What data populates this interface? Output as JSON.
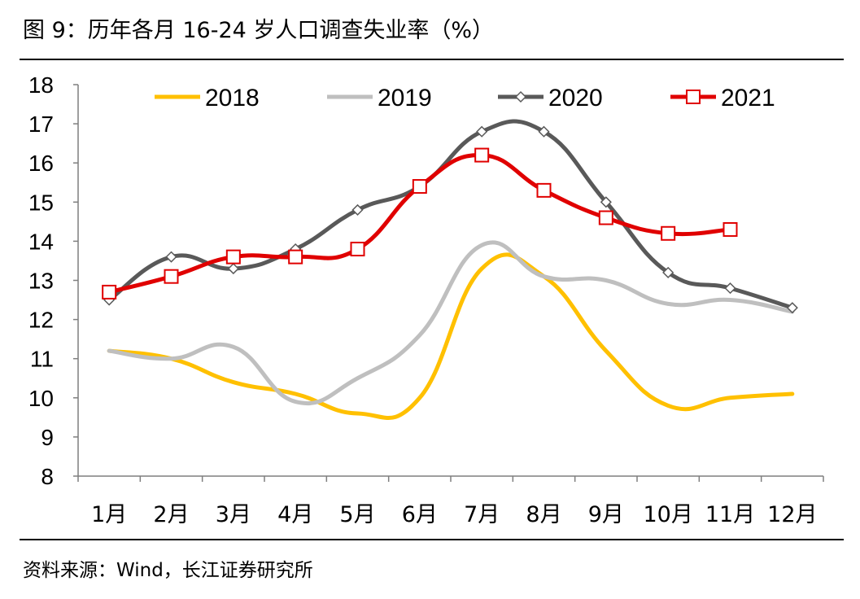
{
  "figure_title": "图 9：历年各月 16-24 岁人口调查失业率（%）",
  "source": "资料来源：Wind，长江证券研究所",
  "chart_data": {
    "type": "line",
    "title": "图 9：历年各月 16-24 岁人口调查失业率（%）",
    "xlabel": "",
    "ylabel": "",
    "ylim": [
      8,
      18
    ],
    "yticks": [
      "8",
      "9",
      "10",
      "11",
      "12",
      "13",
      "14",
      "15",
      "16",
      "17",
      "18"
    ],
    "categories": [
      "1月",
      "2月",
      "3月",
      "4月",
      "5月",
      "6月",
      "7月",
      "8月",
      "9月",
      "10月",
      "11月",
      "12月"
    ],
    "legend_position": "top",
    "grid": false,
    "series": [
      {
        "name": "2018",
        "color": "#FFC000",
        "marker": "none",
        "values": [
          11.2,
          11.0,
          10.4,
          10.1,
          9.6,
          10.0,
          13.3,
          13.1,
          11.2,
          9.8,
          10.0,
          10.1
        ]
      },
      {
        "name": "2019",
        "color": "#BFBFBF",
        "marker": "none",
        "values": [
          11.2,
          11.0,
          11.3,
          9.9,
          10.5,
          11.6,
          13.9,
          13.1,
          13.0,
          12.4,
          12.5,
          12.2
        ]
      },
      {
        "name": "2020",
        "color": "#595959",
        "marker": "diamond",
        "values": [
          12.5,
          13.6,
          13.3,
          13.8,
          14.8,
          15.4,
          16.8,
          16.8,
          15.0,
          13.2,
          12.8,
          12.3
        ]
      },
      {
        "name": "2021",
        "color": "#E00000",
        "marker": "square",
        "values": [
          12.7,
          13.1,
          13.6,
          13.6,
          13.8,
          15.4,
          16.2,
          15.3,
          14.6,
          14.2,
          14.3,
          null
        ]
      }
    ]
  }
}
